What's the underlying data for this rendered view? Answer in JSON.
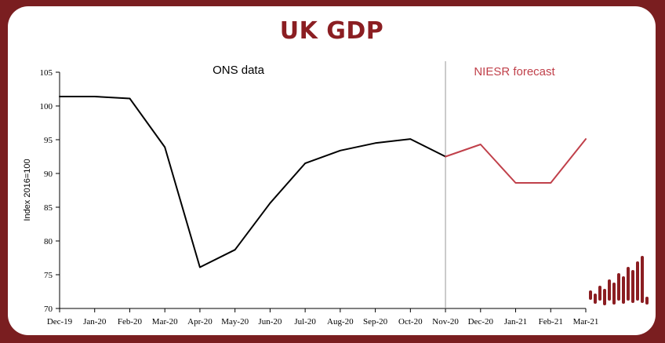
{
  "chart_data": {
    "type": "line",
    "title": "UK GDP",
    "ylabel": "Index 2016=100",
    "xlabel": "",
    "ylim": [
      70,
      105
    ],
    "yticks": [
      70,
      75,
      80,
      85,
      90,
      95,
      100,
      105
    ],
    "categories": [
      "Dec-19",
      "Jan-20",
      "Feb-20",
      "Mar-20",
      "Apr-20",
      "May-20",
      "Jun-20",
      "Jul-20",
      "Aug-20",
      "Sep-20",
      "Oct-20",
      "Nov-20",
      "Dec-20",
      "Jan-21",
      "Feb-21",
      "Mar-21"
    ],
    "series": [
      {
        "values": [
          101.4,
          101.4,
          101.1,
          93.9,
          76.1,
          78.7,
          85.6,
          91.5,
          93.4,
          94.5,
          95.1,
          92.5,
          null,
          null,
          null,
          null
        ],
        "color": "#000000"
      },
      {
        "values": [
          null,
          null,
          null,
          null,
          null,
          null,
          null,
          null,
          null,
          null,
          null,
          92.5,
          94.3,
          88.6,
          88.6,
          95.1
        ],
        "color": "#c0404a"
      }
    ],
    "divider_at": "Nov-20",
    "annotations": [
      {
        "text": "ONS data",
        "color": "#000000"
      },
      {
        "text": "NIESR forecast",
        "color": "#c0404a"
      }
    ],
    "grid": false
  },
  "colors": {
    "brand": "#8b1e22",
    "ons_line": "#000000",
    "forecast_line": "#c0404a",
    "divider": "#999999"
  },
  "logo": {
    "name": "niesr-bar-logo-icon"
  }
}
